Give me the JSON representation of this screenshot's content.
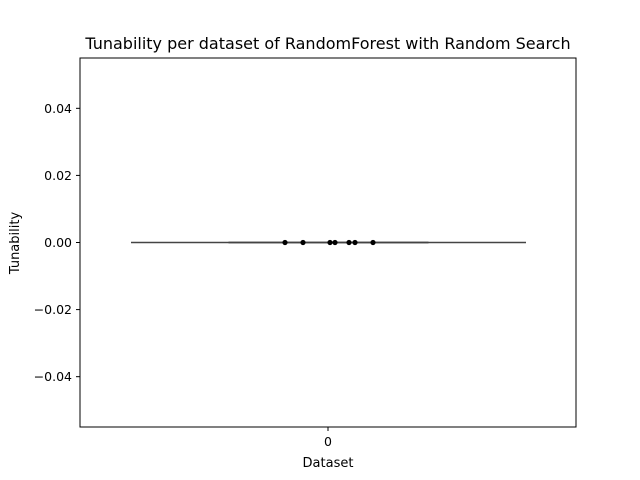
{
  "chart_data": {
    "type": "box",
    "title": "Tunability per dataset of RandomForest with Random Search",
    "xlabel": "Dataset",
    "ylabel": "Tunability",
    "categories": [
      "0"
    ],
    "ylim": [
      -0.055,
      0.055
    ],
    "yticks": [
      {
        "value": 0.04,
        "label": "0.04"
      },
      {
        "value": 0.02,
        "label": "0.02"
      },
      {
        "value": 0.0,
        "label": "0.00"
      },
      {
        "value": -0.02,
        "label": "−0.02"
      },
      {
        "value": -0.04,
        "label": "−0.04"
      }
    ],
    "box": {
      "min": 0.0,
      "q1": 0.0,
      "median": 0.0,
      "q3": 0.0,
      "max": 0.0
    },
    "points": [
      0.0,
      0.0,
      0.0,
      0.0,
      0.0,
      0.0,
      0.0
    ],
    "grid": false,
    "colors": {
      "box": "#444444",
      "points": "#000000",
      "axes": "#000000"
    }
  }
}
